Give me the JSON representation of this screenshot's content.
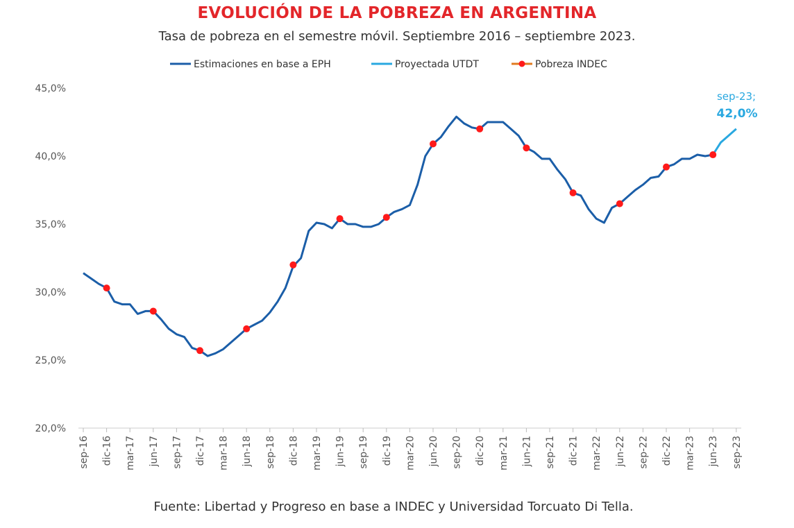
{
  "chart_data": {
    "type": "line",
    "title": "EVOLUCIÓN DE LA POBREZA EN ARGENTINA",
    "subtitle": "Tasa de pobreza en el semestre móvil. Septiembre 2016 – septiembre 2023.",
    "source": "Fuente: Libertad y Progreso en base a INDEC y Universidad Torcuato Di Tella.",
    "ylim": [
      20,
      45
    ],
    "yticks": [
      "20,0%",
      "25,0%",
      "30,0%",
      "35,0%",
      "40,0%",
      "45,0%"
    ],
    "ytick_values": [
      20,
      25,
      30,
      35,
      40,
      45
    ],
    "xtick_labels": [
      "sep-16",
      "dic-16",
      "mar-17",
      "jun-17",
      "sep-17",
      "dic-17",
      "mar-18",
      "jun-18",
      "sep-18",
      "dic-18",
      "mar-19",
      "jun-19",
      "sep-19",
      "dic-19",
      "mar-20",
      "jun-20",
      "sep-20",
      "dic-20",
      "mar-21",
      "jun-21",
      "sep-21",
      "dic-21",
      "mar-22",
      "jun-22",
      "sep-22",
      "dic-22",
      "mar-23",
      "jun-23",
      "sep-23"
    ],
    "grid": false,
    "legend_position": "top",
    "colors": {
      "eph": "#1b5ea8",
      "utdt": "#29a8e0",
      "indec": "#ff1a1a",
      "title": "#e3262a"
    },
    "series": [
      {
        "name": "Estimaciones en base a EPH",
        "start": "sep-16",
        "values": [
          31.4,
          31.0,
          30.6,
          30.3,
          29.3,
          29.1,
          29.1,
          28.4,
          28.6,
          28.6,
          28.0,
          27.3,
          26.9,
          26.7,
          25.9,
          25.7,
          25.3,
          25.5,
          25.8,
          26.3,
          26.8,
          27.3,
          27.6,
          27.9,
          28.5,
          29.3,
          30.3,
          31.9,
          32.5,
          34.5,
          35.1,
          35.0,
          34.7,
          35.4,
          35.0,
          35.0,
          34.8,
          34.8,
          35.0,
          35.5,
          35.9,
          36.1,
          36.4,
          37.9,
          40.0,
          40.9,
          41.4,
          42.2,
          42.9,
          42.4,
          42.1,
          42.0,
          42.5,
          42.5,
          42.5,
          42.0,
          41.5,
          40.6,
          40.3,
          39.8,
          39.8,
          39.0,
          38.3,
          37.3,
          37.1,
          36.1,
          35.4,
          35.1,
          36.2,
          36.5,
          37.0,
          37.5,
          37.9,
          38.4,
          38.5,
          39.2,
          39.4,
          39.8,
          39.8,
          40.1,
          40.0,
          40.1
        ]
      },
      {
        "name": "Proyectada UTDT",
        "points": [
          [
            "jun-23",
            40.1
          ],
          [
            "jul-23",
            41.0
          ],
          [
            "ago-23",
            41.5
          ],
          [
            "sep-23",
            42.0
          ]
        ]
      },
      {
        "name": "Pobreza INDEC",
        "points": [
          [
            "dic-16",
            30.3
          ],
          [
            "jun-17",
            28.6
          ],
          [
            "dic-17",
            25.7
          ],
          [
            "jun-18",
            27.3
          ],
          [
            "dic-18",
            32.0
          ],
          [
            "jun-19",
            35.4
          ],
          [
            "dic-19",
            35.5
          ],
          [
            "jun-20",
            40.9
          ],
          [
            "dic-20",
            42.0
          ],
          [
            "jun-21",
            40.6
          ],
          [
            "dic-21",
            37.3
          ],
          [
            "jun-22",
            36.5
          ],
          [
            "dic-22",
            39.2
          ],
          [
            "jun-23",
            40.1
          ]
        ]
      }
    ],
    "annotation": {
      "label": "sep-23;",
      "value": "42,0%"
    }
  }
}
